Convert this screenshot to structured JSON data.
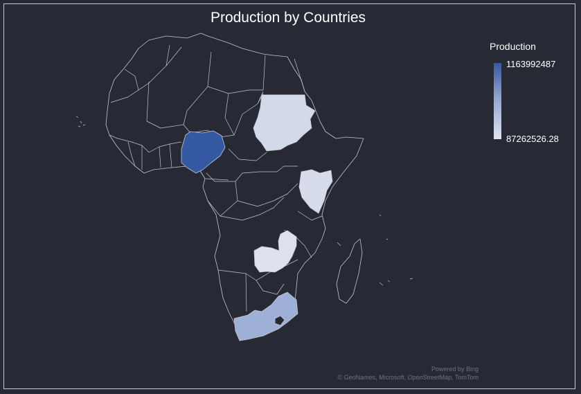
{
  "title": "Production by Countries",
  "legend": {
    "title": "Production",
    "max_label": "1163992487",
    "min_label": "87262526.28",
    "color_high": "#3558a3",
    "color_low": "#dfe4f0"
  },
  "attribution": {
    "line1": "Powered by Bing",
    "line2": "© GeoNames, Microsoft, OpenStreetMap, TomTom"
  },
  "map": {
    "region": "Africa",
    "background": "#272a35",
    "border_color": "#c4c7cf",
    "no_data_color": "#272a35"
  }
}
